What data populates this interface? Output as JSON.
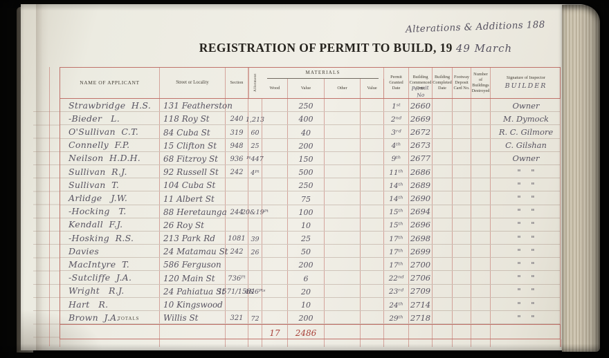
{
  "page": {
    "annotation_top_right": "Alterations & Additions 188",
    "title_printed": "REGISTRATION OF PERMIT TO BUILD, 19",
    "title_handwritten": "49  March"
  },
  "table": {
    "headers": {
      "name": "NAME OF APPLICANT",
      "street": "Street or Locality",
      "section": "Section",
      "allotment": "Allotment",
      "materials": "MATERIALS",
      "wood": "Wood",
      "value1": "Value",
      "other": "Other",
      "value2": "Value",
      "permit_granted": "Permit Granted Date",
      "building_commenced": "Building Commenced Date",
      "permit_no_handwritten": "Permit No",
      "building_completed": "Building Completed Date",
      "footway": "Footway Deposit Card No.",
      "destroyed": "Number of Buildings Destroyed",
      "signature": "Signature of Inspector",
      "signature_handwritten": "BUILDER"
    },
    "rows": [
      {
        "name": "Strawbridge  H.S.",
        "street": "131 Featherston",
        "section": "",
        "allot": "",
        "wood": "",
        "value": "250",
        "other": "",
        "value2": "",
        "date": "1ˢᵗ",
        "permit": "2660",
        "completed": "",
        "footway": "",
        "destroyed": "",
        "builder": "Owner"
      },
      {
        "name": "-Bieder   L.",
        "street": "118 Roy St",
        "section": "240",
        "allot": "1,213",
        "wood": "",
        "value": "400",
        "other": "",
        "value2": "",
        "date": "2ⁿᵈ",
        "permit": "2669",
        "completed": "",
        "footway": "",
        "destroyed": "",
        "builder": "M. Dymock"
      },
      {
        "name": "O'Sullivan  C.T.",
        "street": "84 Cuba St",
        "section": "319",
        "allot": "60",
        "wood": "",
        "value": "40",
        "other": "",
        "value2": "",
        "date": "3ʳᵈ",
        "permit": "2672",
        "completed": "",
        "footway": "",
        "destroyed": "",
        "builder": "R. C. Gilmore"
      },
      {
        "name": "Connelly  F.P.",
        "street": "15 Clifton St",
        "section": "948",
        "allot": "25",
        "wood": "",
        "value": "200",
        "other": "",
        "value2": "",
        "date": "4ᵗʰ",
        "permit": "2673",
        "completed": "",
        "footway": "",
        "destroyed": "",
        "builder": "C. Gilshan"
      },
      {
        "name": "Neilson  H.D.H.",
        "street": "68 Fitzroy St",
        "section": "936",
        "allot": "ᴾᵗ447",
        "wood": "",
        "value": "150",
        "other": "",
        "value2": "",
        "date": "9ᵗʰ",
        "permit": "2677",
        "completed": "",
        "footway": "",
        "destroyed": "",
        "builder": "Owner"
      },
      {
        "name": "Sullivan  R.J.",
        "street": "92 Russell St",
        "section": "242",
        "allot": "4ᴾᵗ",
        "wood": "",
        "value": "500",
        "other": "",
        "value2": "",
        "date": "11ᵗʰ",
        "permit": "2686",
        "completed": "",
        "footway": "",
        "destroyed": "",
        "builder": "\"    \""
      },
      {
        "name": "Sullivan  T.",
        "street": "104 Cuba St",
        "section": "",
        "allot": "",
        "wood": "",
        "value": "250",
        "other": "",
        "value2": "",
        "date": "14ᵗʰ",
        "permit": "2689",
        "completed": "",
        "footway": "",
        "destroyed": "",
        "builder": "\"    \""
      },
      {
        "name": "Arlidge   J.W.",
        "street": "11 Albert St",
        "section": "",
        "allot": "",
        "wood": "",
        "value": "75",
        "other": "",
        "value2": "",
        "date": "14ᵗʰ",
        "permit": "2690",
        "completed": "",
        "footway": "",
        "destroyed": "",
        "builder": "\"    \""
      },
      {
        "name": "-Hocking   T.",
        "street": "88 Heretaunga",
        "section": "244",
        "allot": "20&19ᴾᵗ",
        "wood": "",
        "value": "100",
        "other": "",
        "value2": "",
        "date": "15ᵗʰ",
        "permit": "2694",
        "completed": "",
        "footway": "",
        "destroyed": "",
        "builder": "\"    \""
      },
      {
        "name": "Kendall  F.J.",
        "street": "26 Roy St",
        "section": "",
        "allot": "",
        "wood": "",
        "value": "10",
        "other": "",
        "value2": "",
        "date": "15ᵗʰ",
        "permit": "2696",
        "completed": "",
        "footway": "",
        "destroyed": "",
        "builder": "\"    \""
      },
      {
        "name": "-Hosking  R.S.",
        "street": "213 Park Rd",
        "section": "1081",
        "allot": "39",
        "wood": "",
        "value": "25",
        "other": "",
        "value2": "",
        "date": "17ᵗʰ",
        "permit": "2698",
        "completed": "",
        "footway": "",
        "destroyed": "",
        "builder": "\"    \""
      },
      {
        "name": "Davies",
        "street": "24 Matamau St",
        "section": "242",
        "allot": "26",
        "wood": "",
        "value": "50",
        "other": "",
        "value2": "",
        "date": "17ᵗʰ",
        "permit": "2699",
        "completed": "",
        "footway": "",
        "destroyed": "",
        "builder": "\"    \""
      },
      {
        "name": "MacIntyre  T.",
        "street": "586 Ferguson",
        "section": "",
        "allot": "",
        "wood": "",
        "value": "200",
        "other": "",
        "value2": "",
        "date": "17ᵗʰ",
        "permit": "2700",
        "completed": "",
        "footway": "",
        "destroyed": "",
        "builder": "\"    \""
      },
      {
        "name": "-Sutcliffe  J.A.",
        "street": "120 Main St",
        "section": "736ᴾᵗ",
        "allot": "",
        "wood": "",
        "value": "6",
        "other": "",
        "value2": "",
        "date": "22ⁿᵈ",
        "permit": "2706",
        "completed": "",
        "footway": "",
        "destroyed": "",
        "builder": "\"    \""
      },
      {
        "name": "Wright   R.J.",
        "street": "24 Pahiatua St",
        "section": "1571/1581",
        "allot": "4&6ᴾᵗˢ",
        "wood": "",
        "value": "20",
        "other": "",
        "value2": "",
        "date": "23ʳᵈ",
        "permit": "2709",
        "completed": "",
        "footway": "",
        "destroyed": "",
        "builder": "\"    \""
      },
      {
        "name": "Hart   R.",
        "street": "10 Kingswood",
        "section": "",
        "allot": "",
        "wood": "",
        "value": "10",
        "other": "",
        "value2": "",
        "date": "24ᵗʰ",
        "permit": "2714",
        "completed": "",
        "footway": "",
        "destroyed": "",
        "builder": "\"    \""
      },
      {
        "name": "Brown  J.A.",
        "street": "Willis St",
        "section": "321",
        "allot": "72",
        "wood": "",
        "value": "200",
        "other": "",
        "value2": "",
        "date": "29ᵗʰ",
        "permit": "2718",
        "completed": "",
        "footway": "",
        "destroyed": "",
        "builder": "\"    \""
      }
    ],
    "totals": {
      "label": "TOTALS",
      "wood": "17",
      "value": "2486"
    }
  }
}
